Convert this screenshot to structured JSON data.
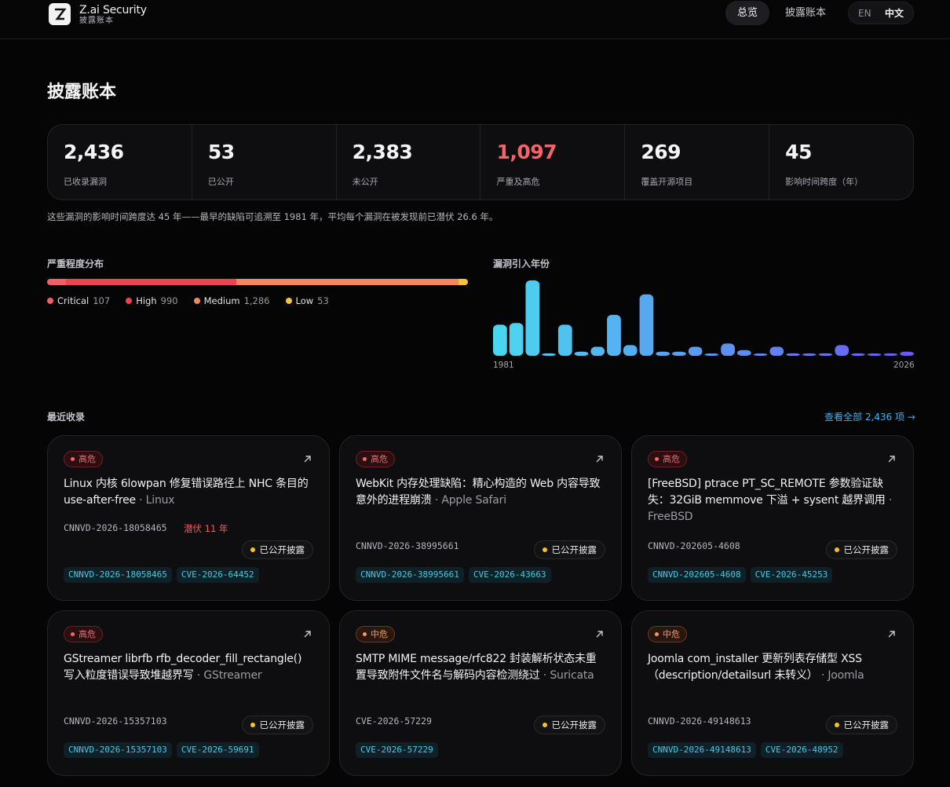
{
  "header": {
    "brand_name": "Z.ai Security",
    "brand_sub": "披露账本",
    "logo_icon": "z-logo-icon",
    "nav": [
      {
        "label": "总览",
        "active": true
      },
      {
        "label": "披露账本",
        "active": false
      }
    ],
    "lang": {
      "en": "EN",
      "zh": "中文",
      "selected": "中文"
    }
  },
  "page_title": "披露账本",
  "stats": [
    {
      "value": "2,436",
      "label": "已收录漏洞",
      "highlight": false
    },
    {
      "value": "53",
      "label": "已公开",
      "highlight": false
    },
    {
      "value": "2,383",
      "label": "未公开",
      "highlight": false
    },
    {
      "value": "1,097",
      "label": "严重及高危",
      "highlight": true
    },
    {
      "value": "269",
      "label": "覆盖开源项目",
      "highlight": false
    },
    {
      "value": "45",
      "label": "影响时间跨度（年）",
      "highlight": false
    }
  ],
  "summary": "这些漏洞的影响时间跨度达 45 年——最早的缺陷可追溯至 1981 年，平均每个漏洞在被发现前已潜伏 26.6 年。",
  "severity": {
    "label": "严重程度分布",
    "items": [
      {
        "name": "Critical",
        "count": "107",
        "value": 107,
        "color": "#f25f62"
      },
      {
        "name": "High",
        "count": "990",
        "value": 990,
        "color": "#e8464e"
      },
      {
        "name": "Medium",
        "count": "1,286",
        "value": 1286,
        "color": "#f4875c"
      },
      {
        "name": "Low",
        "count": "53",
        "value": 53,
        "color": "#f5c33b"
      }
    ]
  },
  "year_chart": {
    "label": "漏洞引入年份",
    "start_label": "1981",
    "end_label": "2026"
  },
  "chart_data": {
    "type": "bar",
    "title": "漏洞引入年份",
    "x_start": "1981",
    "x_end": "2026",
    "values": [
      38,
      40,
      92,
      3,
      38,
      5,
      11,
      50,
      13,
      75,
      5,
      5,
      11,
      2,
      15,
      7,
      2,
      11,
      3,
      2,
      3,
      13,
      3,
      2,
      3,
      5
    ],
    "ylim": [
      0,
      92
    ],
    "color_start": "#4bd6f0",
    "color_end": "#6a5af0",
    "grid": false,
    "legend": "none"
  },
  "recent": {
    "label": "最近收录",
    "view_all": "查看全部 2,436 项 →",
    "cards": [
      {
        "severity": "高危",
        "severity_level": "high",
        "title": "Linux 内核 6lowpan 修复错误路径上 NHC 条目的 use-after-free",
        "vendor": "· Linux",
        "id": "CNNVD-2026-18058465",
        "latent": "潜伏 11 年",
        "status": "已公开披露",
        "tags": [
          "CNNVD-2026-18058465",
          "CVE-2026-64452"
        ]
      },
      {
        "severity": "高危",
        "severity_level": "high",
        "title": "WebKit 内存处理缺陷：精心构造的 Web 内容导致意外的进程崩溃",
        "vendor": "· Apple Safari",
        "id": "CNNVD-2026-38995661",
        "latent": "",
        "status": "已公开披露",
        "tags": [
          "CNNVD-2026-38995661",
          "CVE-2026-43663"
        ]
      },
      {
        "severity": "高危",
        "severity_level": "high",
        "title": "[FreeBSD] ptrace PT_SC_REMOTE 参数验证缺失：32GiB memmove 下溢 + sysent 越界调用",
        "vendor": "· FreeBSD",
        "id": "CNNVD-202605-4608",
        "latent": "",
        "status": "已公开披露",
        "tags": [
          "CNNVD-202605-4608",
          "CVE-2026-45253"
        ]
      },
      {
        "severity": "高危",
        "severity_level": "high",
        "title": "GStreamer librfb rfb_decoder_fill_rectangle() 写入粒度错误导致堆越界写",
        "vendor": "· GStreamer",
        "id": "CNNVD-2026-15357103",
        "latent": "",
        "status": "已公开披露",
        "tags": [
          "CNNVD-2026-15357103",
          "CVE-2026-59691"
        ]
      },
      {
        "severity": "中危",
        "severity_level": "medium",
        "title": "SMTP MIME message/rfc822 封装解析状态未重置导致附件文件名与解码内容检测绕过",
        "vendor": "· Suricata",
        "id": "CVE-2026-57229",
        "latent": "",
        "status": "已公开披露",
        "tags": [
          "CVE-2026-57229"
        ]
      },
      {
        "severity": "中危",
        "severity_level": "medium",
        "title": "Joomla com_installer 更新列表存储型 XSS（description/detailsurl 未转义）",
        "vendor": "· Joomla",
        "id": "CNNVD-2026-49148613",
        "latent": "",
        "status": "已公开披露",
        "tags": [
          "CNNVD-2026-49148613",
          "CVE-2026-48952"
        ]
      }
    ]
  }
}
